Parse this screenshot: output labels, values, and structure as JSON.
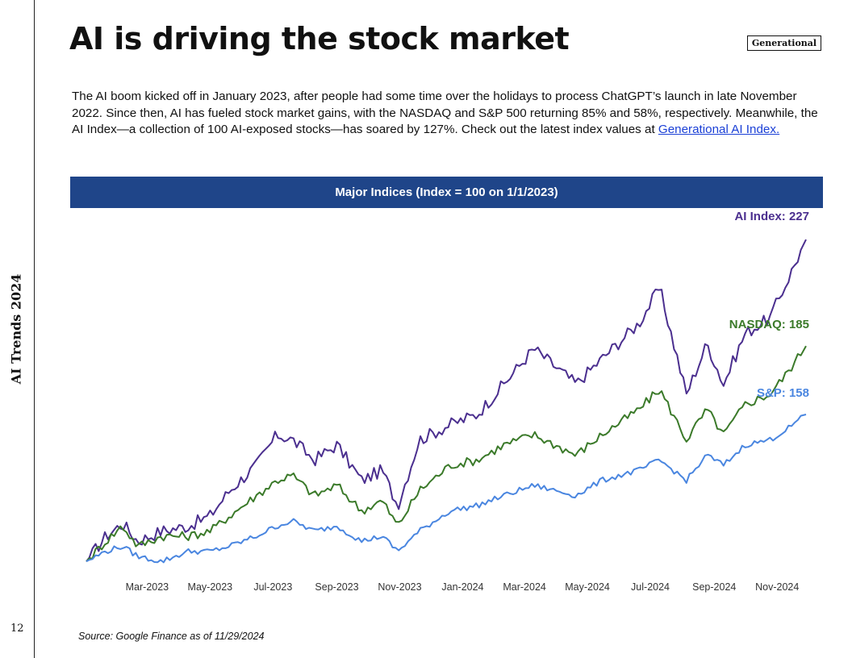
{
  "sidebar": {
    "label": "AI Trends 2024",
    "page_number": "12"
  },
  "header": {
    "title": "AI is driving the stock market",
    "tag": "Generational"
  },
  "intro": {
    "text": "The AI boom kicked off in January 2023, after people had some time over the holidays to process ChatGPT’s launch in late November 2022. Since then, AI has fueled stock market gains, with the NASDAQ and S&P 500 returning 85% and 58%, respectively. Meanwhile, the AI Index—a collection of 100 AI-exposed stocks—has soared by 127%. Check out the latest index values at ",
    "link_text": "Generational AI Index."
  },
  "chart_data": {
    "type": "line",
    "title": "Major Indices (Index = 100 on 1/1/2023)",
    "xlabel": "",
    "ylabel": "",
    "x_tick_labels": [
      "Mar-2023",
      "May-2023",
      "Jul-2023",
      "Sep-2023",
      "Nov-2023",
      "Jan-2024",
      "Mar-2024",
      "May-2024",
      "Jul-2024",
      "Sep-2024",
      "Nov-2024"
    ],
    "x_range": [
      "2023-01-01",
      "2024-11-29"
    ],
    "ylim": [
      95,
      235
    ],
    "grid": false,
    "legend": "end-of-line labels",
    "series": [
      {
        "name": "AI Index",
        "end_label": "AI Index: 227",
        "color": "#4b2f8f",
        "points": [
          [
            "2023-01-01",
            100
          ],
          [
            "2023-01-20",
            110
          ],
          [
            "2023-02-05",
            115
          ],
          [
            "2023-02-20",
            108
          ],
          [
            "2023-03-15",
            112
          ],
          [
            "2023-04-10",
            114
          ],
          [
            "2023-05-01",
            118
          ],
          [
            "2023-05-20",
            128
          ],
          [
            "2023-06-15",
            138
          ],
          [
            "2023-07-05",
            150
          ],
          [
            "2023-07-20",
            148
          ],
          [
            "2023-08-10",
            140
          ],
          [
            "2023-09-01",
            146
          ],
          [
            "2023-09-25",
            132
          ],
          [
            "2023-10-15",
            136
          ],
          [
            "2023-10-30",
            122
          ],
          [
            "2023-11-20",
            148
          ],
          [
            "2023-12-20",
            154
          ],
          [
            "2024-01-15",
            158
          ],
          [
            "2024-02-10",
            170
          ],
          [
            "2024-03-10",
            184
          ],
          [
            "2024-04-20",
            170
          ],
          [
            "2024-05-15",
            180
          ],
          [
            "2024-06-20",
            194
          ],
          [
            "2024-07-10",
            208
          ],
          [
            "2024-08-05",
            166
          ],
          [
            "2024-08-25",
            186
          ],
          [
            "2024-09-10",
            170
          ],
          [
            "2024-10-01",
            190
          ],
          [
            "2024-10-25",
            196
          ],
          [
            "2024-11-10",
            210
          ],
          [
            "2024-11-29",
            227
          ]
        ]
      },
      {
        "name": "NASDAQ",
        "end_label": "NASDAQ: 185",
        "color": "#3b7a2a",
        "points": [
          [
            "2023-01-01",
            100
          ],
          [
            "2023-01-20",
            108
          ],
          [
            "2023-02-05",
            114
          ],
          [
            "2023-02-20",
            106
          ],
          [
            "2023-03-15",
            110
          ],
          [
            "2023-04-10",
            110
          ],
          [
            "2023-05-01",
            112
          ],
          [
            "2023-05-20",
            118
          ],
          [
            "2023-06-15",
            126
          ],
          [
            "2023-07-05",
            132
          ],
          [
            "2023-07-20",
            134
          ],
          [
            "2023-08-10",
            126
          ],
          [
            "2023-09-01",
            130
          ],
          [
            "2023-09-25",
            120
          ],
          [
            "2023-10-15",
            124
          ],
          [
            "2023-10-30",
            114
          ],
          [
            "2023-11-20",
            128
          ],
          [
            "2023-12-20",
            138
          ],
          [
            "2024-01-15",
            140
          ],
          [
            "2024-02-10",
            146
          ],
          [
            "2024-03-10",
            150
          ],
          [
            "2024-04-20",
            142
          ],
          [
            "2024-05-15",
            150
          ],
          [
            "2024-06-20",
            160
          ],
          [
            "2024-07-10",
            168
          ],
          [
            "2024-08-05",
            148
          ],
          [
            "2024-08-25",
            160
          ],
          [
            "2024-09-10",
            150
          ],
          [
            "2024-10-01",
            162
          ],
          [
            "2024-10-25",
            166
          ],
          [
            "2024-11-10",
            174
          ],
          [
            "2024-11-29",
            185
          ]
        ]
      },
      {
        "name": "S&P",
        "end_label": "S&P: 158",
        "color": "#4a86e0",
        "points": [
          [
            "2023-01-01",
            100
          ],
          [
            "2023-01-20",
            104
          ],
          [
            "2023-02-05",
            106
          ],
          [
            "2023-02-20",
            102
          ],
          [
            "2023-03-15",
            100
          ],
          [
            "2023-04-10",
            104
          ],
          [
            "2023-05-01",
            104
          ],
          [
            "2023-05-20",
            106
          ],
          [
            "2023-06-15",
            110
          ],
          [
            "2023-07-05",
            114
          ],
          [
            "2023-07-20",
            116
          ],
          [
            "2023-08-10",
            112
          ],
          [
            "2023-09-01",
            114
          ],
          [
            "2023-09-25",
            108
          ],
          [
            "2023-10-15",
            110
          ],
          [
            "2023-10-30",
            104
          ],
          [
            "2023-11-20",
            112
          ],
          [
            "2023-12-20",
            120
          ],
          [
            "2024-01-15",
            122
          ],
          [
            "2024-02-10",
            126
          ],
          [
            "2024-03-10",
            130
          ],
          [
            "2024-04-20",
            126
          ],
          [
            "2024-05-15",
            132
          ],
          [
            "2024-06-20",
            136
          ],
          [
            "2024-07-10",
            140
          ],
          [
            "2024-08-05",
            132
          ],
          [
            "2024-08-25",
            142
          ],
          [
            "2024-09-10",
            138
          ],
          [
            "2024-10-01",
            146
          ],
          [
            "2024-10-25",
            148
          ],
          [
            "2024-11-10",
            152
          ],
          [
            "2024-11-29",
            158
          ]
        ]
      }
    ]
  },
  "footer": {
    "source": "Source: Google Finance as of 11/29/2024"
  }
}
